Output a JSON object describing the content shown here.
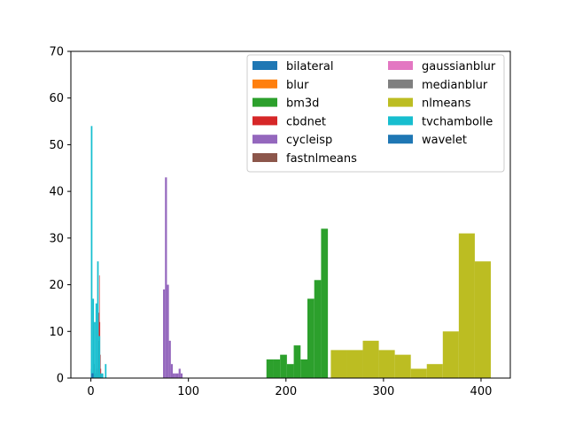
{
  "chart_data": {
    "type": "histogram",
    "title": "",
    "xlabel": "",
    "ylabel": "",
    "xlim": [
      -20.5,
      430
    ],
    "ylim": [
      0,
      70
    ],
    "xticks": [
      0,
      100,
      200,
      300,
      400
    ],
    "yticks": [
      0,
      10,
      20,
      30,
      40,
      50,
      60,
      70
    ],
    "grid": false,
    "legend": {
      "location": "upper right",
      "columns": 2
    },
    "series": [
      {
        "name": "bilateral",
        "color": "#1f77b4",
        "bin_edges": [
          0.0,
          0.3,
          0.6,
          0.9,
          1.2,
          1.5,
          1.8,
          2.1,
          2.4,
          2.7,
          3.0
        ],
        "counts": [
          2,
          2,
          2,
          1,
          1,
          1,
          1,
          1,
          1,
          1
        ]
      },
      {
        "name": "blur",
        "color": "#ff7f0e",
        "bin_edges": [
          1.0,
          1.3,
          1.6,
          1.9,
          2.2,
          2.5,
          2.8,
          3.1,
          3.4,
          3.7,
          4.0
        ],
        "counts": [
          1,
          1,
          1,
          1,
          1,
          1,
          1,
          1,
          1,
          1
        ]
      },
      {
        "name": "bm3d",
        "color": "#2ca02c",
        "bin_edges": [
          180,
          187,
          194,
          201,
          208,
          215,
          222,
          229,
          236,
          243,
          250
        ],
        "counts": [
          4,
          4,
          5,
          3,
          7,
          4,
          17,
          21,
          32,
          0
        ]
      },
      {
        "name": "cbdnet",
        "color": "#d62728",
        "bin_edges": [
          6.0,
          6.5,
          7.0,
          7.5,
          8.0,
          8.5,
          9.0,
          9.5,
          10.0,
          10.5,
          11.0
        ],
        "counts": [
          1,
          2,
          4,
          8,
          14,
          22,
          12,
          5,
          2,
          1
        ]
      },
      {
        "name": "cycleisp",
        "color": "#9467bd",
        "bin_edges": [
          74,
          76,
          78,
          80,
          82,
          84,
          86,
          88,
          90,
          92,
          94
        ],
        "counts": [
          19,
          43,
          20,
          8,
          3,
          1,
          1,
          1,
          2,
          1
        ]
      },
      {
        "name": "fastnlmeans",
        "color": "#8c564b",
        "bin_edges": [
          2.0,
          2.5,
          3.0,
          3.5,
          4.0,
          4.5,
          5.0,
          5.5,
          6.0,
          6.5,
          7.0
        ],
        "counts": [
          1,
          2,
          3,
          3,
          2,
          1,
          1,
          1,
          1,
          1
        ]
      },
      {
        "name": "gaussianblur",
        "color": "#e377c2",
        "bin_edges": [
          1.0,
          1.4,
          1.8,
          2.2,
          2.6,
          3.0,
          3.4,
          3.8,
          4.2,
          4.6,
          5.0
        ],
        "counts": [
          1,
          1,
          1,
          1,
          1,
          1,
          1,
          1,
          1,
          1
        ]
      },
      {
        "name": "medianblur",
        "color": "#7f7f7f",
        "bin_edges": [
          1.0,
          1.4,
          1.8,
          2.2,
          2.6,
          3.0,
          3.4,
          3.8,
          4.2,
          4.6,
          5.0
        ],
        "counts": [
          1,
          1,
          1,
          1,
          1,
          1,
          1,
          1,
          1,
          1
        ]
      },
      {
        "name": "nlmeans",
        "color": "#bcbd22",
        "bin_edges": [
          246,
          262.4,
          278.8,
          295.2,
          311.6,
          328,
          344.4,
          360.8,
          377.2,
          393.6,
          410
        ],
        "counts": [
          6,
          6,
          8,
          6,
          5,
          2,
          3,
          10,
          31,
          25
        ]
      },
      {
        "name": "tvchambolle",
        "color": "#17becf",
        "bin_edges": [
          0,
          1.6,
          3.2,
          4.8,
          6.4,
          8.0,
          9.6,
          11.2,
          12.8,
          14.4,
          16.0
        ],
        "counts": [
          54,
          17,
          12,
          16,
          25,
          9,
          1,
          1,
          0,
          3
        ]
      },
      {
        "name": "wavelet",
        "color": "#1f77b4",
        "bin_edges": [
          0.5,
          0.7,
          0.9,
          1.1,
          1.3,
          1.5,
          1.7,
          1.9,
          2.1,
          2.3,
          2.5
        ],
        "counts": [
          1,
          1,
          1,
          1,
          1,
          1,
          1,
          1,
          1,
          1
        ]
      }
    ]
  }
}
